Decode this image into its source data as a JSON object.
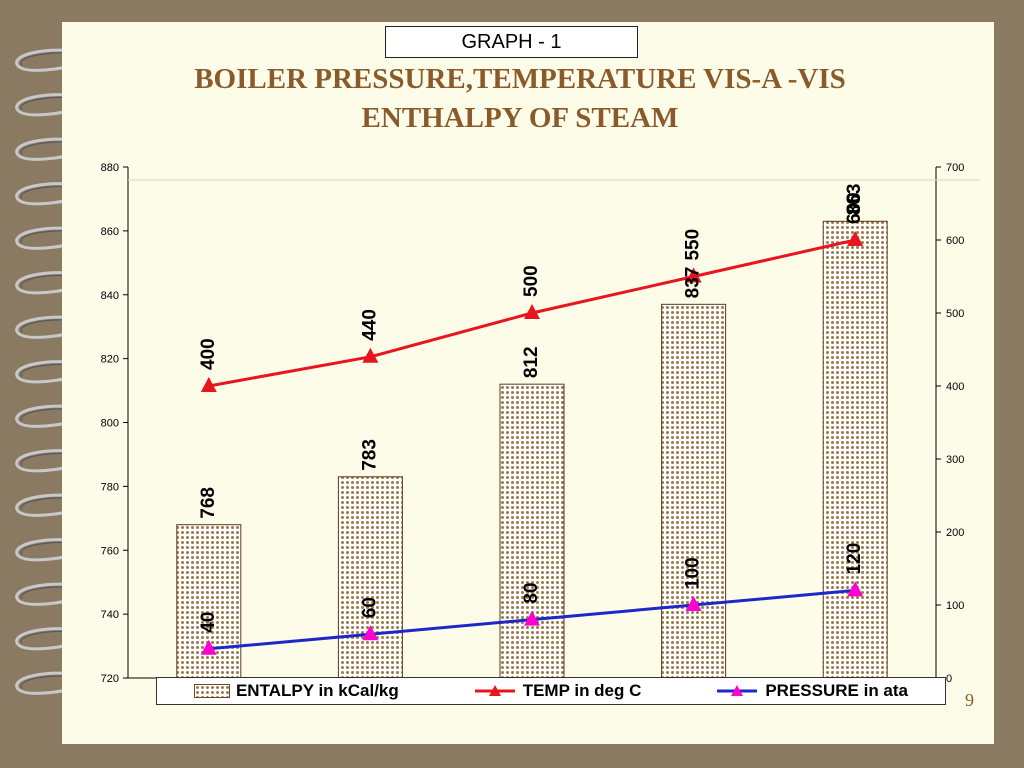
{
  "graph_label": "GRAPH - 1",
  "title_line1": "BOILER PRESSURE,TEMPERATURE VIS-A -VIS",
  "title_line2": "ENTHALPY OF STEAM",
  "page_number": "9",
  "colors": {
    "bar_fill": "#9B7A4A",
    "temp_line": "#E8141E",
    "pressure_line": "#1E28C8",
    "marker_temp": "#E8141E",
    "marker_pressure": "#FF00D0",
    "title": "#8A5A2B"
  },
  "chart_data": {
    "type": "bar",
    "categories": [
      "",
      "",
      "",
      "",
      ""
    ],
    "y_left": {
      "min": 720,
      "max": 880,
      "ticks": [
        720,
        740,
        760,
        780,
        800,
        820,
        840,
        860,
        880
      ]
    },
    "y_right": {
      "min": 0,
      "max": 700,
      "ticks": [
        0,
        100,
        200,
        300,
        400,
        500,
        600,
        700
      ]
    },
    "series": [
      {
        "name": "ENTALPY in kCal/kg",
        "type": "bar",
        "axis": "left",
        "values": [
          768,
          783,
          812,
          837,
          863
        ]
      },
      {
        "name": "TEMP in deg C",
        "type": "line",
        "axis": "right",
        "values": [
          400,
          440,
          500,
          550,
          600
        ]
      },
      {
        "name": "PRESSURE in ata",
        "type": "line",
        "axis": "right",
        "values": [
          40,
          60,
          80,
          100,
          120
        ]
      }
    ],
    "legend_position": "bottom",
    "grid": false
  }
}
